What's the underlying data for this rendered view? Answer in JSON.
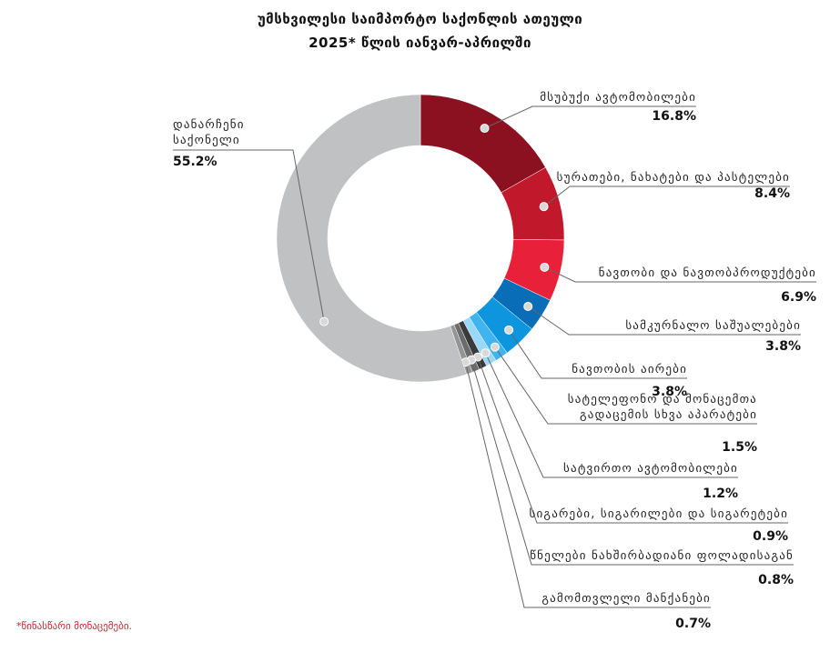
{
  "title_line1": "უმსხვილესი საიმპორტო საქონლის ათეული",
  "title_line2": "2025* წლის იანვარ-აპრილში",
  "footnote": "*წინასწარი მონაცემები.",
  "chart_data": {
    "type": "pie",
    "donut": true,
    "legend": "callout-labels",
    "slices": [
      {
        "label": [
          "მსუბუქი ავტომობილები"
        ],
        "value": 16.8,
        "value_label": "16.8%",
        "color": "#8b1020"
      },
      {
        "label": [
          "სურათები, ნახატები და პასტელები"
        ],
        "value": 8.4,
        "value_label": "8.4%",
        "color": "#c2182b"
      },
      {
        "label": [
          "ნავთობი და ნავთობპროდუქტები"
        ],
        "value": 6.9,
        "value_label": "6.9%",
        "color": "#e8203a"
      },
      {
        "label": [
          "სამკურნალო საშუალებები"
        ],
        "value": 3.8,
        "value_label": "3.8%",
        "color": "#0a6db8"
      },
      {
        "label": [
          "ნავთობის აირები"
        ],
        "value": 3.8,
        "value_label": "3.8%",
        "color": "#0d96dd"
      },
      {
        "label": [
          "სატელეფონო და მონაცემთა",
          "გადაცემის სხვა აპარატები"
        ],
        "value": 1.5,
        "value_label": "1.5%",
        "color": "#3fb4ef"
      },
      {
        "label": [
          "სატვირთო ავტომობილები"
        ],
        "value": 1.2,
        "value_label": "1.2%",
        "color": "#9ad8f7"
      },
      {
        "label": [
          "სიგარები, სიგარილები და სიგარეტები"
        ],
        "value": 0.9,
        "value_label": "0.9%",
        "color": "#3a3a3a"
      },
      {
        "label": [
          "წნელები ნახშირბადიანი ფოლადისაგან"
        ],
        "value": 0.8,
        "value_label": "0.8%",
        "color": "#6b6b6b"
      },
      {
        "label": [
          "გამომთვლელი მანქანები"
        ],
        "value": 0.7,
        "value_label": "0.7%",
        "color": "#949494"
      },
      {
        "label": [
          "დანარჩენი",
          "საქონელი"
        ],
        "value": 55.2,
        "value_label": "55.2%",
        "color": "#bfc1c2"
      }
    ]
  }
}
